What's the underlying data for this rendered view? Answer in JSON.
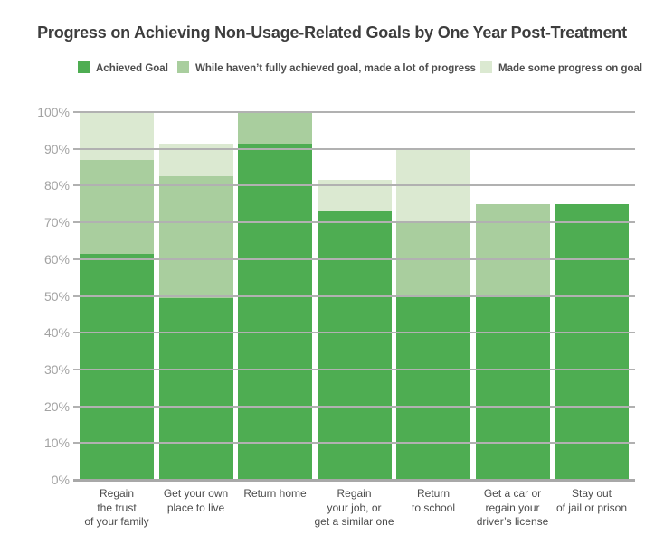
{
  "title": "Progress on Achieving Non-Usage-Related Goals by One Year Post-Treatment",
  "chart_data": {
    "type": "bar",
    "stacked": true,
    "title": "Progress on Achieving Non-Usage-Related Goals by One Year Post-Treatment",
    "legend_position": "top",
    "grid": "horizontal gridlines drawn over bars",
    "ylim": [
      0,
      100
    ],
    "yticks": [
      "0%",
      "10%",
      "20%",
      "30%",
      "40%",
      "50%",
      "60%",
      "70%",
      "80%",
      "90%",
      "100%"
    ],
    "xlabel": "",
    "ylabel": "",
    "categories": [
      "Regain the trust of your family",
      "Get your own place to live",
      "Return home",
      "Regain your job, or get a similar one",
      "Return to school",
      "Get a car or regain your driver’s license",
      "Stay out of jail or prison"
    ],
    "category_lines": [
      [
        "Regain",
        "the trust",
        "of your family"
      ],
      [
        "Get your own",
        "place to live"
      ],
      [
        "Return home"
      ],
      [
        "Regain",
        "your job, or",
        "get a similar one"
      ],
      [
        "Return",
        "to school"
      ],
      [
        "Get a car or",
        "regain your",
        "driver’s license"
      ],
      [
        "Stay out",
        "of jail or prison"
      ]
    ],
    "series": [
      {
        "name": "Achieved Goal",
        "color": "#4ead52",
        "values": [
          61.5,
          49.5,
          91.5,
          73,
          50,
          50,
          75
        ]
      },
      {
        "name": "While haven’t fully achieved goal, made a lot of progress",
        "color": "#a9ce9e",
        "values": [
          25.5,
          33,
          8.5,
          0,
          20,
          25,
          0
        ]
      },
      {
        "name": "Made some progress on goal",
        "color": "#dbe9d1",
        "values": [
          13,
          9,
          0,
          8.5,
          20,
          0,
          0
        ]
      }
    ],
    "stacked_totals": [
      100,
      91.5,
      100,
      81.5,
      90,
      75,
      75
    ]
  },
  "colors": {
    "background": "#ffffff",
    "gridline": "#b1b1b1",
    "baseline": "#a8a8a8",
    "title_text": "#3d3d3d",
    "legend_text": "#4d4d4d",
    "ytick_text": "#a3a3a3",
    "category_text": "#4b4b4b"
  }
}
